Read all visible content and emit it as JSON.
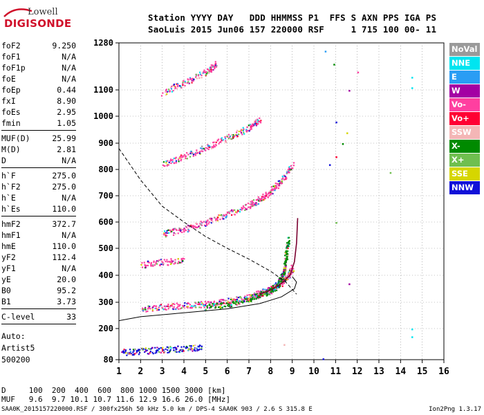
{
  "logo": {
    "line1": "Lowell",
    "line2": "DIGISONDE"
  },
  "header": {
    "line1": "Station YYYY DAY   DDD HHMMSS P1  FFS S AXN PPS IGA PS",
    "line2": "SaoLuis 2015 Jun06 157 220000 RSF     1 715 100 00- 11"
  },
  "params": {
    "group1": [
      {
        "name": "foF2",
        "value": "9.250"
      },
      {
        "name": "foF1",
        "value": "N/A"
      },
      {
        "name": "foF1p",
        "value": "N/A"
      },
      {
        "name": "foE",
        "value": "N/A"
      },
      {
        "name": "foEp",
        "value": "0.44"
      },
      {
        "name": "fxI",
        "value": "8.90"
      },
      {
        "name": "foEs",
        "value": "2.95"
      },
      {
        "name": "fmin",
        "value": "1.05"
      }
    ],
    "group2": [
      {
        "name": "MUF(D)",
        "value": "25.99"
      },
      {
        "name": "M(D)",
        "value": "2.81"
      },
      {
        "name": "D",
        "value": "N/A"
      }
    ],
    "group3": [
      {
        "name": "h`F",
        "value": "275.0"
      },
      {
        "name": "h`F2",
        "value": "275.0"
      },
      {
        "name": "h`E",
        "value": "N/A"
      },
      {
        "name": "h`Es",
        "value": "110.0"
      }
    ],
    "group4": [
      {
        "name": "hmF2",
        "value": "372.7"
      },
      {
        "name": "hmF1",
        "value": "N/A"
      },
      {
        "name": "hmE",
        "value": "110.0"
      },
      {
        "name": "yF2",
        "value": "112.4"
      },
      {
        "name": "yF1",
        "value": "N/A"
      },
      {
        "name": "yE",
        "value": "20.0"
      },
      {
        "name": "B0",
        "value": "95.2"
      },
      {
        "name": "B1",
        "value": "3.73"
      }
    ],
    "group5": [
      {
        "name": "C-level",
        "value": "33"
      }
    ]
  },
  "scaling": {
    "line1": "Auto:",
    "line2": "Artist5",
    "line3": "500200"
  },
  "legend": [
    {
      "label": "NoVal",
      "color": "#9a9a9a"
    },
    {
      "label": "NNE",
      "color": "#00e5f0"
    },
    {
      "label": "E",
      "color": "#2a9df4"
    },
    {
      "label": "W",
      "color": "#a300a3"
    },
    {
      "label": "Vo-",
      "color": "#ff3fa0"
    },
    {
      "label": "Vo+",
      "color": "#ff0033"
    },
    {
      "label": "SSW",
      "color": "#f4b6b6"
    },
    {
      "label": "X-",
      "color": "#008a00"
    },
    {
      "label": "X+",
      "color": "#6fbf4f"
    },
    {
      "label": "SSE",
      "color": "#d6d600"
    },
    {
      "label": "NNW",
      "color": "#1010d8"
    }
  ],
  "dtable": {
    "d_row": "D     100  200  400  600  800 1000 1500 3000 [km]",
    "muf_row": "MUF   9.6  9.7 10.1 10.7 11.6 12.9 16.6 26.0 [MHz]"
  },
  "footer": "SAA0K_2015157220000.RSF / 300fx256h 50 kHz 5.0 km / DPS-4 SAA0K 903 / 2.6 S 315.8 E",
  "version": "Ion2Png 1.3.17",
  "chart_data": {
    "type": "scatter",
    "x_ticks": [
      "1",
      "2",
      "3",
      "4",
      "5",
      "6",
      "7",
      "8",
      "9",
      "10",
      "11",
      "12",
      "13",
      "14",
      "15",
      "16"
    ],
    "y_ticks": [
      "80",
      "200",
      "300",
      "400",
      "500",
      "600",
      "700",
      "800",
      "900",
      "1000",
      "1100",
      "1280"
    ],
    "xlim": [
      1,
      16
    ],
    "ylim": [
      80,
      1280
    ],
    "grid": true,
    "traces": [
      {
        "name": "F2 O-trace",
        "color": "#ff3fa0",
        "points": [
          [
            2.0,
            275
          ],
          [
            3.0,
            285
          ],
          [
            4.0,
            290
          ],
          [
            5.0,
            295
          ],
          [
            6.0,
            305
          ],
          [
            7.0,
            320
          ],
          [
            7.5,
            335
          ],
          [
            8.0,
            350
          ],
          [
            8.5,
            375
          ],
          [
            8.8,
            400
          ],
          [
            9.0,
            430
          ]
        ]
      },
      {
        "name": "F2 X-trace",
        "color": "#008a00",
        "points": [
          [
            5.0,
            285
          ],
          [
            6.0,
            295
          ],
          [
            7.0,
            315
          ],
          [
            7.5,
            330
          ],
          [
            8.0,
            345
          ],
          [
            8.3,
            365
          ],
          [
            8.5,
            390
          ],
          [
            8.6,
            420
          ],
          [
            8.7,
            470
          ],
          [
            8.8,
            540
          ]
        ]
      },
      {
        "name": "2F trace",
        "color": "#ff3fa0",
        "points": [
          [
            3.0,
            555
          ],
          [
            4.0,
            575
          ],
          [
            5.0,
            600
          ],
          [
            6.0,
            630
          ],
          [
            7.0,
            665
          ],
          [
            7.5,
            690
          ],
          [
            8.0,
            720
          ],
          [
            8.5,
            760
          ],
          [
            9.0,
            820
          ]
        ]
      },
      {
        "name": "3F trace",
        "color": "#ff3fa0",
        "points": [
          [
            3.0,
            820
          ],
          [
            4.0,
            850
          ],
          [
            5.0,
            885
          ],
          [
            6.0,
            920
          ],
          [
            7.0,
            960
          ],
          [
            7.5,
            990
          ]
        ]
      },
      {
        "name": "4F trace",
        "color": "#ff3fa0",
        "points": [
          [
            3.0,
            1090
          ],
          [
            4.0,
            1130
          ],
          [
            5.0,
            1170
          ],
          [
            5.5,
            1200
          ]
        ]
      },
      {
        "name": "Es trace",
        "color": "#1010d8",
        "points": [
          [
            1.1,
            110
          ],
          [
            2.0,
            115
          ],
          [
            3.0,
            120
          ],
          [
            4.0,
            125
          ],
          [
            4.8,
            130
          ]
        ]
      },
      {
        "name": "2Es trace",
        "color": "#ff3fa0",
        "points": [
          [
            2.0,
            440
          ],
          [
            3.0,
            450
          ],
          [
            4.0,
            455
          ]
        ]
      }
    ],
    "profile_dashed": [
      [
        1.0,
        880
      ],
      [
        2.0,
        760
      ],
      [
        3.0,
        660
      ],
      [
        4.0,
        600
      ],
      [
        5.0,
        545
      ],
      [
        6.0,
        500
      ],
      [
        7.0,
        460
      ],
      [
        8.0,
        415
      ],
      [
        8.7,
        375
      ],
      [
        9.2,
        330
      ]
    ],
    "profile_solid": [
      [
        1.0,
        230
      ],
      [
        2.0,
        245
      ],
      [
        4.0,
        260
      ],
      [
        6.0,
        275
      ],
      [
        7.5,
        295
      ],
      [
        8.5,
        320
      ],
      [
        9.1,
        350
      ],
      [
        9.2,
        375
      ],
      [
        9.0,
        395
      ]
    ],
    "virtual_height_curve": [
      [
        7.5,
        330
      ],
      [
        8.0,
        345
      ],
      [
        8.5,
        370
      ],
      [
        8.9,
        400
      ],
      [
        9.1,
        450
      ],
      [
        9.2,
        520
      ],
      [
        9.25,
        615
      ]
    ]
  }
}
